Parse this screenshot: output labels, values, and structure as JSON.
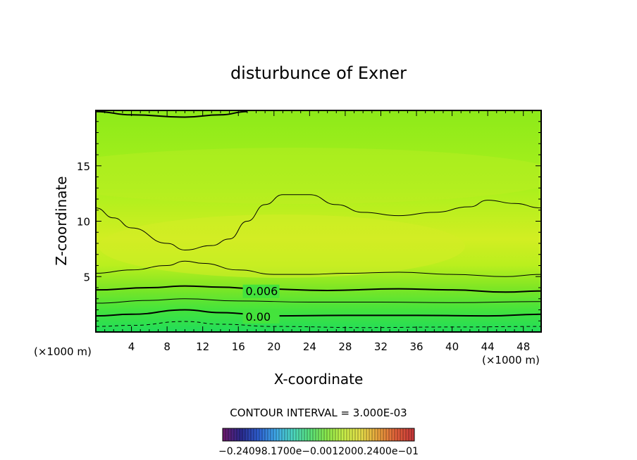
{
  "chart_data": {
    "type": "contour",
    "title": "disturbunce of Exner",
    "xlabel": "X-coordinate",
    "ylabel": "Z-coordinate",
    "x_unit": "(×1000 m)",
    "y_unit": "(×1000 m)",
    "xlim": [
      0,
      50
    ],
    "ylim": [
      0,
      20
    ],
    "x_ticks": [
      4,
      8,
      12,
      16,
      20,
      24,
      28,
      32,
      36,
      40,
      44,
      48
    ],
    "y_ticks": [
      5,
      10,
      15
    ],
    "contour_interval_text": "CONTOUR INTERVAL = 3.000E-03",
    "contour_labels": [
      {
        "text": "0.006",
        "x": 16.5,
        "z": 3.7
      },
      {
        "text": "0.00",
        "x": 16.5,
        "z": 1.4
      }
    ],
    "colorbar_text": "−0.24098.1700e−0.0012000.2400e−01",
    "colorbar_colors": [
      "#6a1b6e",
      "#2a2a8e",
      "#2e5fd0",
      "#3fa8e8",
      "#4cd6c0",
      "#58e07a",
      "#8ce84a",
      "#c8ee48",
      "#e6dc4a",
      "#e8a03c",
      "#e0603a",
      "#c83a3a"
    ],
    "field_colors": {
      "bottom": "#22dd5a",
      "low": "#44e33c",
      "mid_low": "#7fe624",
      "mid": "#b9ef1e",
      "core": "#d2ee22",
      "upper": "#aaf01c",
      "top": "#8dea1a"
    },
    "contour_lines": [
      {
        "style": "dashed",
        "weight": 1,
        "points": [
          [
            0,
            0.5
          ],
          [
            4,
            0.6
          ],
          [
            10,
            0.95
          ],
          [
            14,
            0.7
          ],
          [
            20,
            0.5
          ],
          [
            30,
            0.4
          ],
          [
            40,
            0.45
          ],
          [
            50,
            0.5
          ]
        ]
      },
      {
        "style": "solid",
        "weight": 2,
        "points": [
          [
            0,
            1.45
          ],
          [
            4,
            1.6
          ],
          [
            10,
            2.0
          ],
          [
            14,
            1.75
          ],
          [
            20,
            1.45
          ],
          [
            28,
            1.5
          ],
          [
            36,
            1.5
          ],
          [
            44,
            1.45
          ],
          [
            50,
            1.6
          ]
        ]
      },
      {
        "style": "solid",
        "weight": 1,
        "points": [
          [
            0,
            2.6
          ],
          [
            6,
            2.85
          ],
          [
            10,
            3.0
          ],
          [
            16,
            2.8
          ],
          [
            24,
            2.7
          ],
          [
            32,
            2.7
          ],
          [
            40,
            2.65
          ],
          [
            50,
            2.75
          ]
        ]
      },
      {
        "style": "solid",
        "weight": 2,
        "points": [
          [
            0,
            3.8
          ],
          [
            6,
            4.0
          ],
          [
            10,
            4.15
          ],
          [
            14,
            4.05
          ],
          [
            18,
            3.9
          ],
          [
            26,
            3.75
          ],
          [
            34,
            3.9
          ],
          [
            40,
            3.8
          ],
          [
            46,
            3.6
          ],
          [
            50,
            3.7
          ]
        ]
      },
      {
        "style": "solid",
        "weight": 1,
        "points": [
          [
            0,
            5.3
          ],
          [
            4,
            5.6
          ],
          [
            8,
            6.0
          ],
          [
            10,
            6.4
          ],
          [
            12,
            6.2
          ],
          [
            16,
            5.6
          ],
          [
            20,
            5.2
          ],
          [
            24,
            5.2
          ],
          [
            28,
            5.3
          ],
          [
            34,
            5.4
          ],
          [
            40,
            5.2
          ],
          [
            46,
            5.0
          ],
          [
            50,
            5.2
          ]
        ]
      },
      {
        "style": "solid",
        "weight": 1,
        "points": [
          [
            0,
            11.2
          ],
          [
            2,
            10.3
          ],
          [
            4,
            9.4
          ],
          [
            8,
            8.0
          ],
          [
            10,
            7.4
          ],
          [
            13,
            7.8
          ],
          [
            15,
            8.4
          ],
          [
            17,
            10.0
          ],
          [
            19,
            11.5
          ],
          [
            21,
            12.4
          ],
          [
            24,
            12.4
          ],
          [
            27,
            11.5
          ],
          [
            30,
            10.8
          ],
          [
            34,
            10.5
          ],
          [
            38,
            10.8
          ],
          [
            42,
            11.3
          ],
          [
            44,
            11.9
          ],
          [
            47,
            11.6
          ],
          [
            50,
            11.2
          ]
        ]
      },
      {
        "style": "solid",
        "weight": 2,
        "points": [
          [
            0,
            19.9
          ],
          [
            4,
            19.6
          ],
          [
            10,
            19.4
          ],
          [
            14,
            19.6
          ],
          [
            17,
            19.9
          ]
        ]
      }
    ]
  }
}
